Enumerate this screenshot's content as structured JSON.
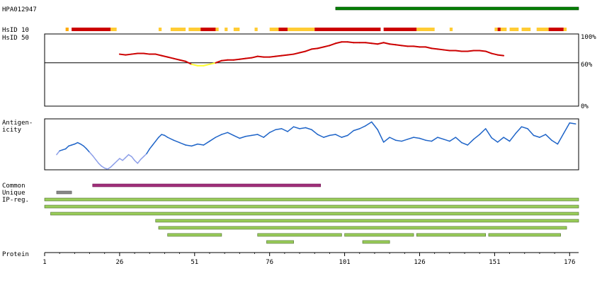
{
  "chart_data": {
    "type": "line",
    "x_axis": {
      "label": "Protein",
      "min": 1,
      "max": 179,
      "ticks": [
        "1",
        "26",
        "51",
        "76",
        "101",
        "126",
        "151",
        "176"
      ],
      "tick_values": [
        1,
        26,
        51,
        76,
        101,
        126,
        151,
        176
      ]
    },
    "antigen_track": {
      "label": "HPA012947",
      "start": 98,
      "end": 179,
      "color": "#008000"
    },
    "identity_track": {
      "label_top": "HsID 10",
      "label_bottom": "HsID 50",
      "y_ticks": [
        "100%",
        "60%",
        "0%"
      ],
      "y_tick_values": [
        100,
        60,
        0
      ],
      "reference_line": 60,
      "ylim": [
        0,
        100
      ],
      "high_color": "#cc0000",
      "low_color": "#ffff33",
      "segments_10": [
        {
          "start": 8,
          "end": 9,
          "color": "#ffaa00"
        },
        {
          "start": 10,
          "end": 23,
          "color": "#cc0000"
        },
        {
          "start": 23,
          "end": 25,
          "color": "#ffcc33"
        },
        {
          "start": 39,
          "end": 40,
          "color": "#ffcc33"
        },
        {
          "start": 43,
          "end": 48,
          "color": "#ffcc33"
        },
        {
          "start": 49,
          "end": 53,
          "color": "#ffcc33"
        },
        {
          "start": 53,
          "end": 58,
          "color": "#cc0000"
        },
        {
          "start": 58,
          "end": 59,
          "color": "#ffcc33"
        },
        {
          "start": 61,
          "end": 62,
          "color": "#ffcc33"
        },
        {
          "start": 64,
          "end": 66,
          "color": "#ffcc33"
        },
        {
          "start": 71,
          "end": 72,
          "color": "#ffcc33"
        },
        {
          "start": 76,
          "end": 79,
          "color": "#ffcc33"
        },
        {
          "start": 79,
          "end": 82,
          "color": "#cc0000"
        },
        {
          "start": 82,
          "end": 91,
          "color": "#ffcc33"
        },
        {
          "start": 91,
          "end": 107,
          "color": "#cc0000"
        },
        {
          "start": 107,
          "end": 113,
          "color": "#cc0000"
        },
        {
          "start": 114,
          "end": 125,
          "color": "#cc0000"
        },
        {
          "start": 125,
          "end": 131,
          "color": "#ffcc33"
        },
        {
          "start": 136,
          "end": 137,
          "color": "#ffcc33"
        },
        {
          "start": 151,
          "end": 152,
          "color": "#ffcc33"
        },
        {
          "start": 152,
          "end": 153,
          "color": "#cc0000"
        },
        {
          "start": 153,
          "end": 155,
          "color": "#ffcc33"
        },
        {
          "start": 156,
          "end": 159,
          "color": "#ffcc33"
        },
        {
          "start": 160,
          "end": 163,
          "color": "#ffcc33"
        },
        {
          "start": 165,
          "end": 169,
          "color": "#ffcc33"
        },
        {
          "start": 169,
          "end": 174,
          "color": "#cc0000"
        },
        {
          "start": 174,
          "end": 175,
          "color": "#ffcc33"
        }
      ],
      "x": [
        26,
        28,
        30,
        32,
        34,
        36,
        38,
        40,
        42,
        44,
        46,
        48,
        50,
        52,
        54,
        56,
        58,
        60,
        62,
        64,
        66,
        68,
        70,
        72,
        74,
        76,
        78,
        80,
        82,
        84,
        86,
        88,
        90,
        92,
        94,
        96,
        98,
        100,
        102,
        104,
        106,
        108,
        110,
        112,
        114,
        116,
        118,
        120,
        122,
        124,
        126,
        128,
        130,
        132,
        134,
        136,
        138,
        140,
        142,
        144,
        146,
        148,
        150,
        152,
        154
      ],
      "values": [
        72,
        71,
        72,
        73,
        73,
        72,
        72,
        70,
        68,
        66,
        64,
        62,
        58,
        56,
        56,
        58,
        60,
        63,
        64,
        64,
        65,
        66,
        67,
        69,
        68,
        68,
        69,
        70,
        71,
        72,
        74,
        76,
        79,
        80,
        82,
        84,
        87,
        89,
        89,
        88,
        88,
        88,
        87,
        86,
        88,
        86,
        85,
        84,
        83,
        83,
        82,
        82,
        80,
        79,
        78,
        77,
        77,
        76,
        76,
        77,
        77,
        76,
        73,
        71,
        70
      ]
    },
    "antigenicity_track": {
      "label_line1": "Antigen-",
      "label_line2": "icity",
      "x": [
        5,
        6,
        7,
        8,
        9,
        10,
        11,
        12,
        13,
        14,
        15,
        16,
        17,
        18,
        19,
        20,
        21,
        22,
        23,
        24,
        25,
        26,
        27,
        28,
        29,
        30,
        31,
        32,
        33,
        34,
        35,
        36,
        37,
        38,
        39,
        40,
        41,
        42,
        44,
        46,
        48,
        50,
        52,
        54,
        56,
        58,
        60,
        62,
        64,
        66,
        68,
        70,
        72,
        74,
        76,
        78,
        80,
        82,
        84,
        86,
        88,
        90,
        92,
        94,
        96,
        98,
        100,
        102,
        104,
        106,
        108,
        110,
        112,
        114,
        116,
        118,
        120,
        122,
        124,
        126,
        128,
        130,
        132,
        134,
        136,
        138,
        140,
        142,
        144,
        146,
        148,
        150,
        152,
        154,
        156,
        158,
        160,
        162,
        164,
        166,
        168,
        170,
        172,
        174,
        176,
        178
      ],
      "values": [
        0.3,
        0.38,
        0.4,
        0.42,
        0.48,
        0.5,
        0.52,
        0.55,
        0.52,
        0.48,
        0.42,
        0.35,
        0.28,
        0.2,
        0.12,
        0.06,
        0.02,
        0.0,
        0.04,
        0.1,
        0.16,
        0.22,
        0.18,
        0.24,
        0.3,
        0.26,
        0.18,
        0.12,
        0.2,
        0.26,
        0.32,
        0.42,
        0.5,
        0.58,
        0.66,
        0.72,
        0.7,
        0.66,
        0.6,
        0.55,
        0.5,
        0.48,
        0.52,
        0.5,
        0.58,
        0.66,
        0.72,
        0.76,
        0.7,
        0.64,
        0.68,
        0.7,
        0.72,
        0.66,
        0.76,
        0.82,
        0.84,
        0.78,
        0.88,
        0.84,
        0.86,
        0.82,
        0.72,
        0.66,
        0.7,
        0.72,
        0.66,
        0.7,
        0.8,
        0.84,
        0.9,
        0.98,
        0.82,
        0.56,
        0.66,
        0.6,
        0.58,
        0.62,
        0.66,
        0.64,
        0.6,
        0.58,
        0.66,
        0.62,
        0.58,
        0.66,
        0.55,
        0.5,
        0.62,
        0.72,
        0.84,
        0.65,
        0.56,
        0.66,
        0.58,
        0.74,
        0.88,
        0.84,
        0.7,
        0.66,
        0.72,
        0.6,
        0.52,
        0.74,
        0.96,
        0.94
      ],
      "low_color": "#8c9ee8",
      "high_color": "#1e64c8",
      "threshold": 0.35
    },
    "common_track": {
      "label": "Common",
      "start": 17,
      "end": 93,
      "color": "#a0307a"
    },
    "unique_track": {
      "label": "Unique",
      "start": 5,
      "end": 10,
      "color": "#888888"
    },
    "ipreg_track": {
      "label": "IP-reg.",
      "color": "#9acd5a",
      "rows": [
        [
          {
            "start": 1,
            "end": 179
          }
        ],
        [
          {
            "start": 1,
            "end": 179
          }
        ],
        [
          {
            "start": 3,
            "end": 179
          }
        ],
        [
          {
            "start": 38,
            "end": 179
          }
        ],
        [
          {
            "start": 39,
            "end": 175
          }
        ],
        [
          {
            "start": 42,
            "end": 60
          },
          {
            "start": 72,
            "end": 100
          },
          {
            "start": 101,
            "end": 124
          },
          {
            "start": 125,
            "end": 148
          },
          {
            "start": 149,
            "end": 173
          }
        ],
        [
          {
            "start": 75,
            "end": 84
          },
          {
            "start": 107,
            "end": 116
          }
        ]
      ]
    }
  }
}
